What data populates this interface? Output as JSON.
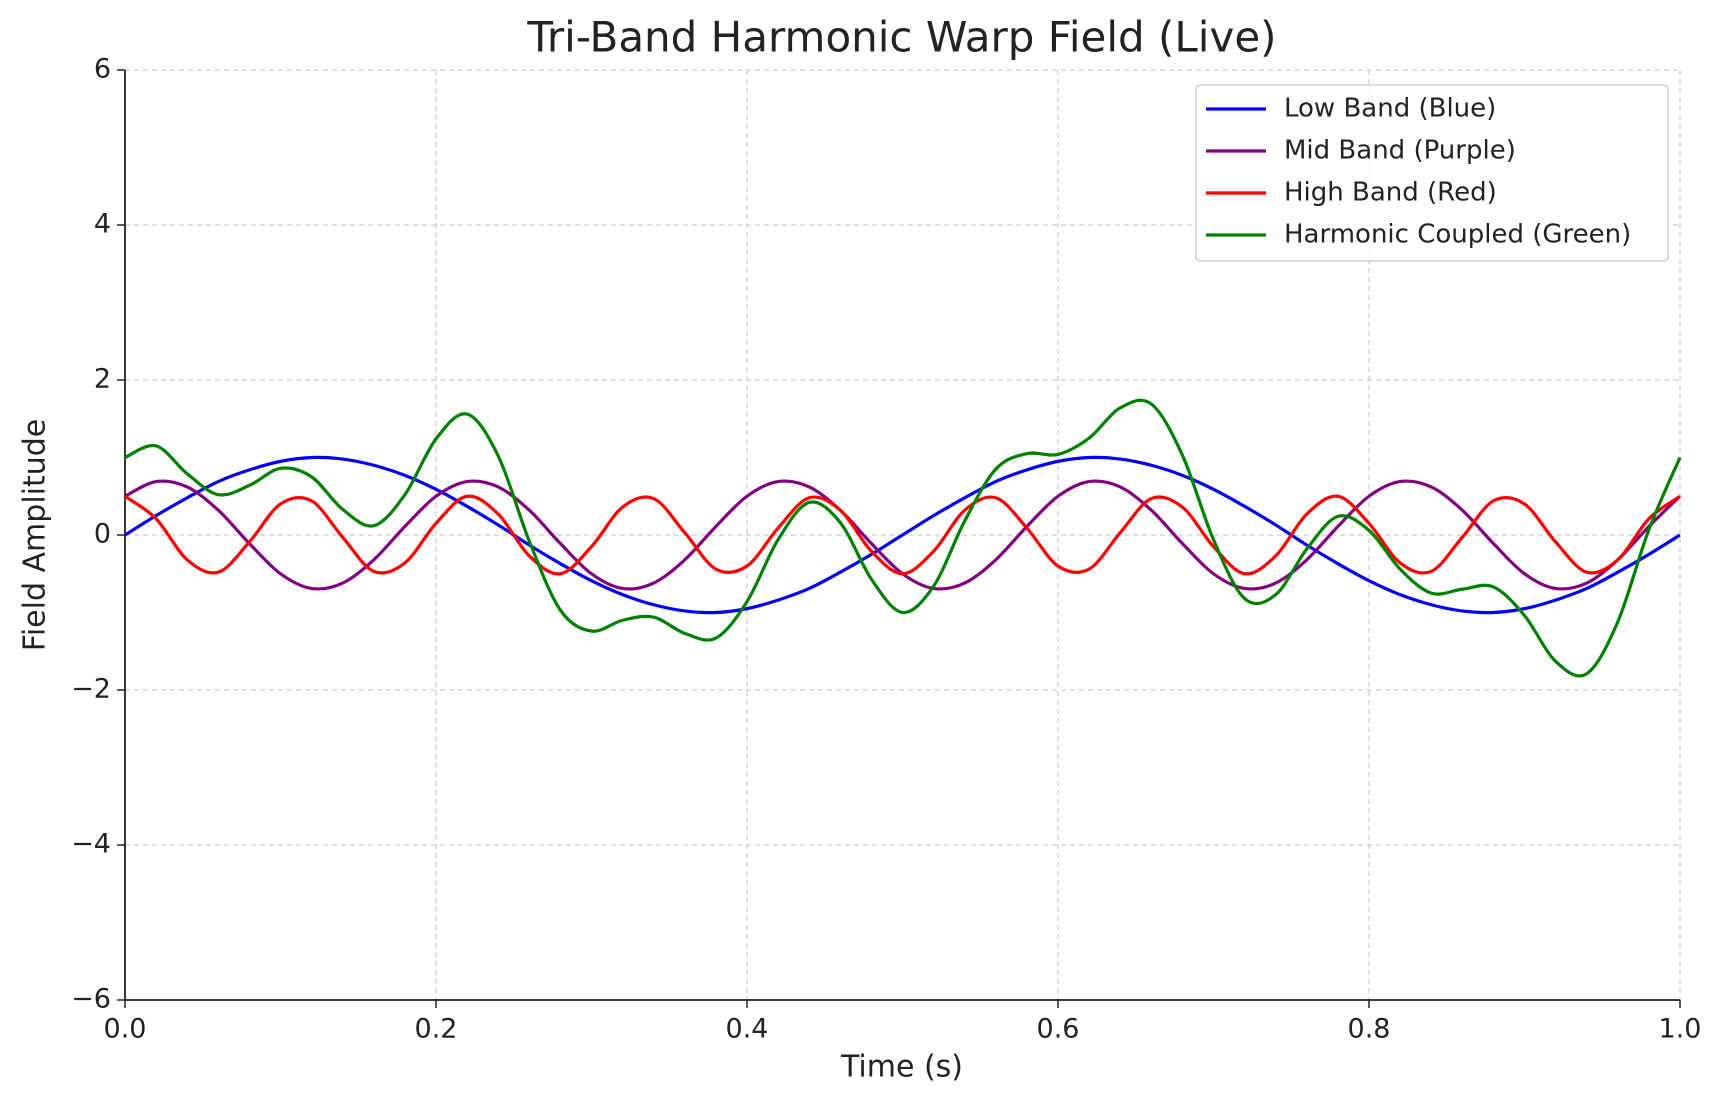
{
  "chart_data": {
    "type": "line",
    "title": "Tri-Band Harmonic Warp Field (Live)",
    "xlabel": "Time (s)",
    "ylabel": "Field Amplitude",
    "x": [
      0,
      0.02,
      0.04,
      0.06,
      0.08,
      0.1,
      0.12,
      0.14,
      0.16,
      0.18,
      0.2,
      0.22,
      0.24,
      0.26,
      0.28,
      0.3,
      0.32,
      0.34,
      0.36,
      0.38,
      0.4,
      0.42,
      0.44,
      0.46,
      0.48,
      0.5,
      0.52,
      0.54,
      0.56,
      0.58,
      0.6,
      0.62,
      0.64,
      0.66,
      0.68,
      0.7,
      0.72,
      0.74,
      0.76,
      0.78,
      0.8,
      0.82,
      0.84,
      0.86,
      0.88,
      0.9,
      0.92,
      0.94,
      0.96,
      0.98,
      1.0
    ],
    "series": [
      {
        "name": "Low Band (Blue)",
        "color": "#0000ff",
        "values": [
          0,
          0.25,
          0.48,
          0.69,
          0.84,
          0.95,
          1.0,
          0.98,
          0.9,
          0.77,
          0.59,
          0.37,
          0.13,
          -0.13,
          -0.37,
          -0.59,
          -0.77,
          -0.9,
          -0.98,
          -1.0,
          -0.95,
          -0.84,
          -0.69,
          -0.48,
          -0.25,
          0,
          0.25,
          0.48,
          0.69,
          0.84,
          0.95,
          1.0,
          0.98,
          0.9,
          0.77,
          0.59,
          0.37,
          0.13,
          -0.13,
          -0.37,
          -0.59,
          -0.77,
          -0.9,
          -0.98,
          -1.0,
          -0.95,
          -0.84,
          -0.69,
          -0.48,
          -0.25,
          0
        ]
      },
      {
        "name": "Mid Band (Purple)",
        "color": "#800080",
        "values": [
          0.5,
          0.69,
          0.62,
          0.32,
          -0.11,
          -0.5,
          -0.69,
          -0.62,
          -0.32,
          0.11,
          0.5,
          0.69,
          0.62,
          0.32,
          -0.11,
          -0.5,
          -0.69,
          -0.62,
          -0.32,
          0.11,
          0.5,
          0.69,
          0.62,
          0.32,
          -0.11,
          -0.5,
          -0.69,
          -0.62,
          -0.32,
          0.11,
          0.5,
          0.69,
          0.62,
          0.32,
          -0.11,
          -0.5,
          -0.69,
          -0.62,
          -0.32,
          0.11,
          0.5,
          0.69,
          0.62,
          0.32,
          -0.11,
          -0.5,
          -0.69,
          -0.62,
          -0.32,
          0.11,
          0.5
        ]
      },
      {
        "name": "High Band (Red)",
        "color": "#ff0000",
        "values": [
          0.5,
          0.21,
          -0.32,
          -0.48,
          -0.09,
          0.4,
          0.44,
          -0.03,
          -0.47,
          -0.36,
          0.15,
          0.5,
          0.27,
          -0.27,
          -0.5,
          -0.15,
          0.36,
          0.47,
          0.03,
          -0.44,
          -0.4,
          0.09,
          0.48,
          0.32,
          -0.21,
          -0.5,
          -0.21,
          0.32,
          0.48,
          0.09,
          -0.4,
          -0.44,
          0.03,
          0.47,
          0.36,
          -0.15,
          -0.5,
          -0.27,
          0.27,
          0.5,
          0.15,
          -0.36,
          -0.47,
          -0.03,
          0.44,
          0.4,
          -0.09,
          -0.48,
          -0.32,
          0.21,
          0.5
        ]
      },
      {
        "name": "Harmonic Coupled (Green)",
        "color": "#008000",
        "values": [
          1.0,
          1.15,
          0.79,
          0.52,
          0.64,
          0.86,
          0.75,
          0.33,
          0.12,
          0.52,
          1.24,
          1.56,
          1.02,
          -0.08,
          -0.97,
          -1.24,
          -1.1,
          -1.06,
          -1.27,
          -1.33,
          -0.86,
          -0.06,
          0.42,
          0.16,
          -0.57,
          -1.0,
          -0.66,
          0.18,
          0.85,
          1.05,
          1.04,
          1.25,
          1.64,
          1.69,
          1.03,
          -0.06,
          -0.82,
          -0.77,
          -0.18,
          0.24,
          0.06,
          -0.44,
          -0.75,
          -0.7,
          -0.67,
          -1.04,
          -1.63,
          -1.79,
          -1.12,
          0.07,
          1.0
        ]
      }
    ],
    "xlim": [
      0,
      1
    ],
    "xticks": [
      {
        "value": 0,
        "label": "0.0"
      },
      0.2,
      0.4,
      0.6,
      0.8,
      {
        "value": 1,
        "label": "1.0"
      }
    ],
    "ylim": [
      -6,
      6
    ],
    "yticks": [
      {
        "value": -6,
        "label": "−6"
      },
      {
        "value": -4,
        "label": "−4"
      },
      {
        "value": -2,
        "label": "−2"
      },
      0,
      2,
      4,
      6
    ],
    "grid": true,
    "legend": "upper right"
  }
}
